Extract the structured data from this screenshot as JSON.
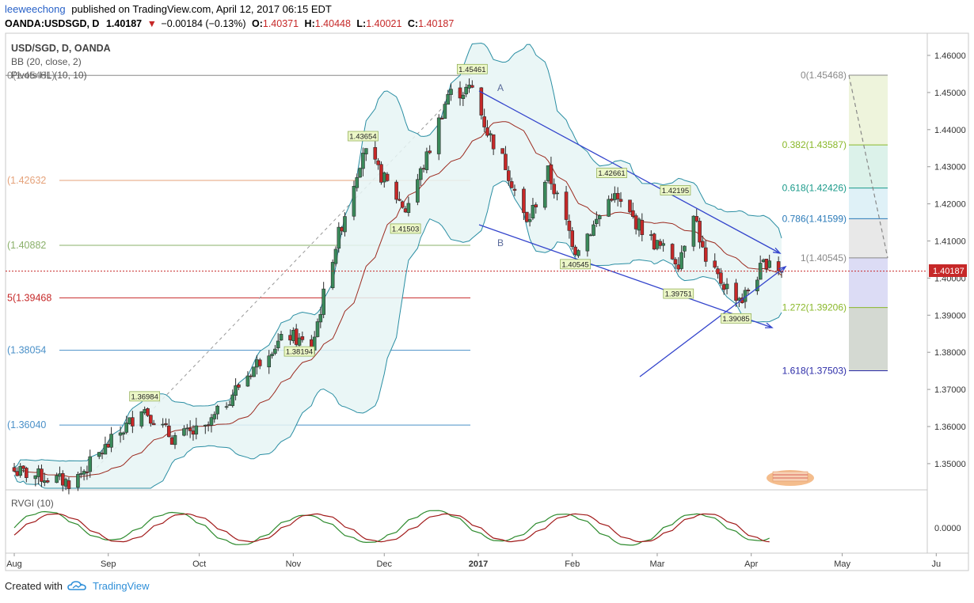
{
  "header": {
    "author": "leeweechong",
    "published": "published on TradingView.com, April 12, 2017 06:15 EDT",
    "symbol": "OANDA:USDSGD, D",
    "last": "1.40187",
    "change_arrow": "▼",
    "change": "−0.00184 (−0.13%)",
    "o_label": "O:",
    "o_value": "1.40371",
    "h_label": "H:",
    "h_value": "1.40448",
    "l_label": "L:",
    "l_value": "1.40021",
    "c_label": "C:",
    "c_value": "1.40187"
  },
  "legend": {
    "title": "USD/SGD, D, OANDA",
    "bb": "BB (20, close, 2)",
    "pivots": "Pivots HL (10, 10)",
    "rvgi": "RVGI (10)"
  },
  "colors": {
    "candle_up": "#3a8a5a",
    "candle_down": "#c62828",
    "bb_band": "#2a8ea3",
    "bb_fill": "#e6f4f5",
    "bb_basis": "#9c2b20",
    "trendline": "#3344cc",
    "price_tag": "#c62828",
    "rvgi_main": "#2e8b2e",
    "rvgi_signal": "#a11a1a"
  },
  "chart_data": {
    "type": "candlestick",
    "instrument": "USD/SGD",
    "timeframe": "D",
    "y_range": [
      1.3405,
      1.4655
    ],
    "y_ticks": [
      "1.46000",
      "1.45000",
      "1.44000",
      "1.43000",
      "1.42000",
      "1.41000",
      "1.40000",
      "1.39000",
      "1.38000",
      "1.37000",
      "1.36000",
      "1.35000"
    ],
    "x_labels": [
      "Aug",
      "Sep",
      "Oct",
      "Nov",
      "Dec",
      "2017",
      "Feb",
      "Mar",
      "Apr",
      "May",
      "Ju"
    ],
    "x_label_dates": [
      "2016-08-01",
      "2016-09-01",
      "2016-10-01",
      "2016-11-01",
      "2016-12-01",
      "2017-01-01",
      "2017-02-01",
      "2017-03-01",
      "2017-04-01",
      "2017-05-01",
      "2017-06-01"
    ],
    "current_price": "1.40187",
    "pivot_labels": [
      {
        "text": "1.45461",
        "date": "2016-12-30",
        "value": 1.45461
      },
      {
        "text": "1.43654",
        "date": "2016-11-24",
        "value": 1.43654
      },
      {
        "text": "1.42661",
        "date": "2017-02-14",
        "value": 1.42661
      },
      {
        "text": "1.42195",
        "date": "2017-03-07",
        "value": 1.42195
      },
      {
        "text": "1.41503",
        "date": "2016-12-08",
        "value": 1.41503
      },
      {
        "text": "1.40545",
        "date": "2017-02-02",
        "value": 1.40545
      },
      {
        "text": "1.39751",
        "date": "2017-03-08",
        "value": 1.39751
      },
      {
        "text": "1.39085",
        "date": "2017-03-27",
        "value": 1.39085
      },
      {
        "text": "1.38194",
        "date": "2016-11-03",
        "value": 1.38194
      },
      {
        "text": "1.36984",
        "date": "2016-09-13",
        "value": 1.36984
      }
    ],
    "fib_left": [
      {
        "text": "0(1.45461)",
        "value": 1.45461,
        "color": "#888888"
      },
      {
        "text": "(1.42632",
        "value": 1.42632,
        "color": "#e5a27a"
      },
      {
        "text": "(1.40882",
        "value": 1.40882,
        "color": "#8ab06a"
      },
      {
        "text": "5(1.39468",
        "value": 1.39468,
        "color": "#c62828"
      },
      {
        "text": "(1.38054",
        "value": 1.38054,
        "color": "#4a90c8"
      },
      {
        "text": "(1.36040",
        "value": 1.3604,
        "color": "#4a90c8"
      }
    ],
    "fib_right": [
      {
        "text": "0(1.45468)",
        "value": 1.45468,
        "color": "#888888",
        "fill": "#eef4dc"
      },
      {
        "text": "0.382(1.43587)",
        "value": 1.43587,
        "color": "#8ab82a",
        "fill": "#dcf2ea"
      },
      {
        "text": "0.618(1.42426)",
        "value": 1.42426,
        "color": "#1a9a8a",
        "fill": "#dff1f7"
      },
      {
        "text": "0.786(1.41599)",
        "value": 1.41599,
        "color": "#2a7ab8",
        "fill": "#e8e8e8"
      },
      {
        "text": "1(1.40545)",
        "value": 1.40545,
        "color": "#888888",
        "fill": "#dcdcf5"
      },
      {
        "text": "1.272(1.39206)",
        "value": 1.39206,
        "color": "#8ab82a",
        "fill": "#d4d9d2"
      },
      {
        "text": "1.618(1.37503)",
        "value": 1.37503,
        "color": "#2b2ba8",
        "fill": null
      }
    ],
    "annotations": [
      "A",
      "B"
    ],
    "rvgi_zero": "0.0000"
  },
  "footer": {
    "created_with": "Created with",
    "brand": "TradingView"
  }
}
